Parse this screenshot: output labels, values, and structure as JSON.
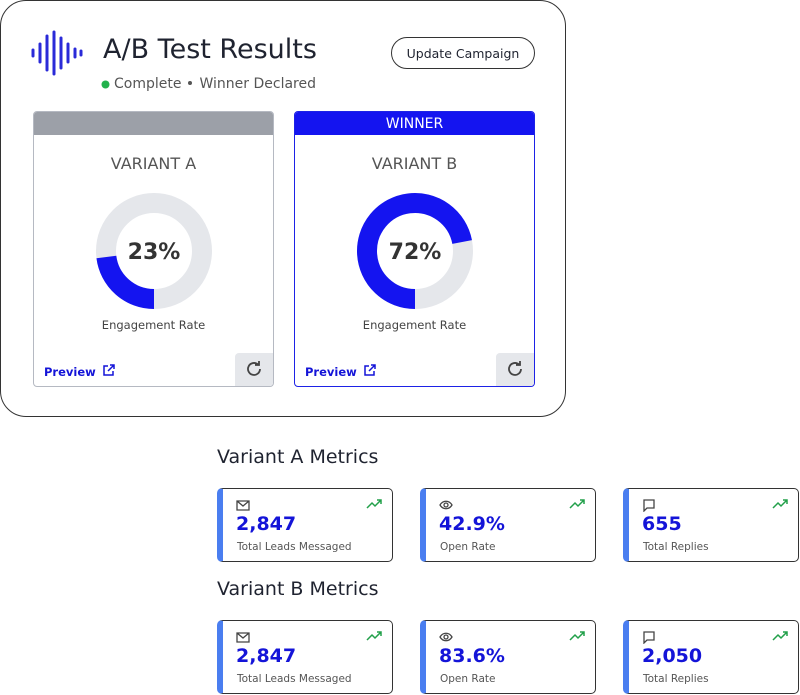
{
  "header": {
    "title": "A/B Test Results",
    "status": "Complete",
    "result": "Winner Declared",
    "button": "Update Campaign"
  },
  "variants": [
    {
      "name": "VARIANT A",
      "engagement_rate": 23,
      "engagement_label": "23%",
      "caption": "Engagement Rate",
      "link": "Preview"
    },
    {
      "badge": "WINNER",
      "name": "VARIANT B",
      "engagement_rate": 72,
      "engagement_label": "72%",
      "caption": "Engagement Rate",
      "link": "Preview"
    }
  ],
  "metrics": [
    {
      "title": "Variant A Metrics",
      "cards": [
        {
          "value": "2,847",
          "label": "Total Leads Messaged"
        },
        {
          "value": "42.9%",
          "label": "Open Rate"
        },
        {
          "value": "655",
          "label": "Total Replies"
        }
      ]
    },
    {
      "title": "Variant B Metrics",
      "cards": [
        {
          "value": "2,847",
          "label": "Total Leads Messaged"
        },
        {
          "value": "83.6%",
          "label": "Open Rate"
        },
        {
          "value": "2,050",
          "label": "Total Replies"
        }
      ]
    }
  ]
}
